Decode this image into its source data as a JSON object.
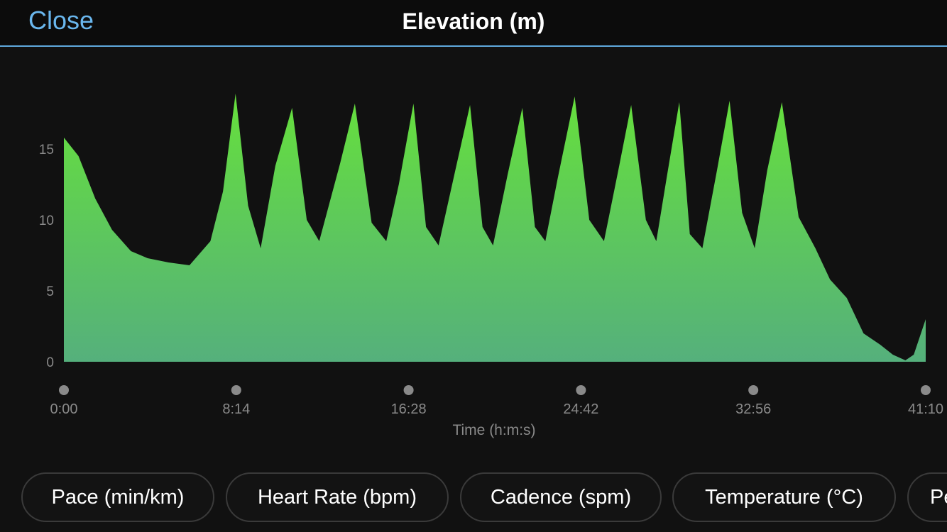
{
  "header": {
    "close_label": "Close",
    "title": "Elevation (m)"
  },
  "colors": {
    "background": "#111111",
    "accent": "#6ab7ee",
    "fill_top": "#66e03c",
    "fill_bottom": "#55b07c",
    "axis_text": "#8a8a8a"
  },
  "chart_data": {
    "type": "area",
    "title": "Elevation (m)",
    "xlabel": "Time (h:m:s)",
    "ylabel": "",
    "x_unit": "minutes",
    "xlim": [
      0,
      41.17
    ],
    "ylim": [
      0,
      19
    ],
    "y_ticks": [
      "0",
      "5",
      "10",
      "15"
    ],
    "x_ticks": [
      "0:00",
      "8:14",
      "16:28",
      "24:42",
      "32:56",
      "41:10"
    ],
    "grid": false,
    "legend": "none",
    "series": [
      {
        "x": [
          0,
          0.7,
          1.5,
          2.3,
          3.2,
          4.0,
          5.0,
          6.0,
          7.0,
          7.6,
          8.2,
          8.8,
          9.4,
          10.1,
          10.9,
          11.6,
          12.2,
          13.2,
          13.9,
          14.7,
          15.4,
          16.0,
          16.7,
          17.3,
          17.9,
          18.7,
          19.4,
          20.0,
          20.5,
          21.2,
          21.9,
          22.5,
          23.0,
          23.6,
          24.4,
          25.1,
          25.8,
          26.5,
          27.1,
          27.8,
          28.3,
          28.8,
          29.4,
          29.9,
          30.5,
          31.2,
          31.8,
          32.4,
          33.0,
          33.6,
          34.3,
          35.1,
          35.9,
          36.6,
          37.4,
          38.2,
          39.0,
          39.6,
          40.2,
          40.6,
          41.17
        ],
        "values": [
          15.8,
          14.5,
          11.5,
          9.3,
          7.8,
          7.3,
          7.0,
          6.8,
          8.5,
          12.0,
          18.9,
          11.0,
          8.0,
          13.8,
          17.9,
          10.0,
          8.5,
          14.0,
          18.2,
          9.8,
          8.5,
          12.5,
          18.2,
          9.5,
          8.2,
          13.5,
          18.1,
          9.5,
          8.2,
          13.2,
          17.9,
          9.5,
          8.5,
          13.0,
          18.7,
          10.0,
          8.5,
          13.6,
          18.1,
          10.0,
          8.5,
          13.0,
          18.3,
          9.0,
          8.0,
          13.5,
          18.4,
          10.5,
          8.0,
          13.5,
          18.3,
          10.2,
          8.0,
          5.8,
          4.5,
          2.0,
          1.2,
          0.5,
          0.1,
          0.5,
          3.0
        ]
      }
    ]
  },
  "metric_pills": [
    "Pace (min/km)",
    "Heart Rate (bpm)",
    "Cadence (spm)",
    "Temperature (°C)",
    "Pe"
  ]
}
